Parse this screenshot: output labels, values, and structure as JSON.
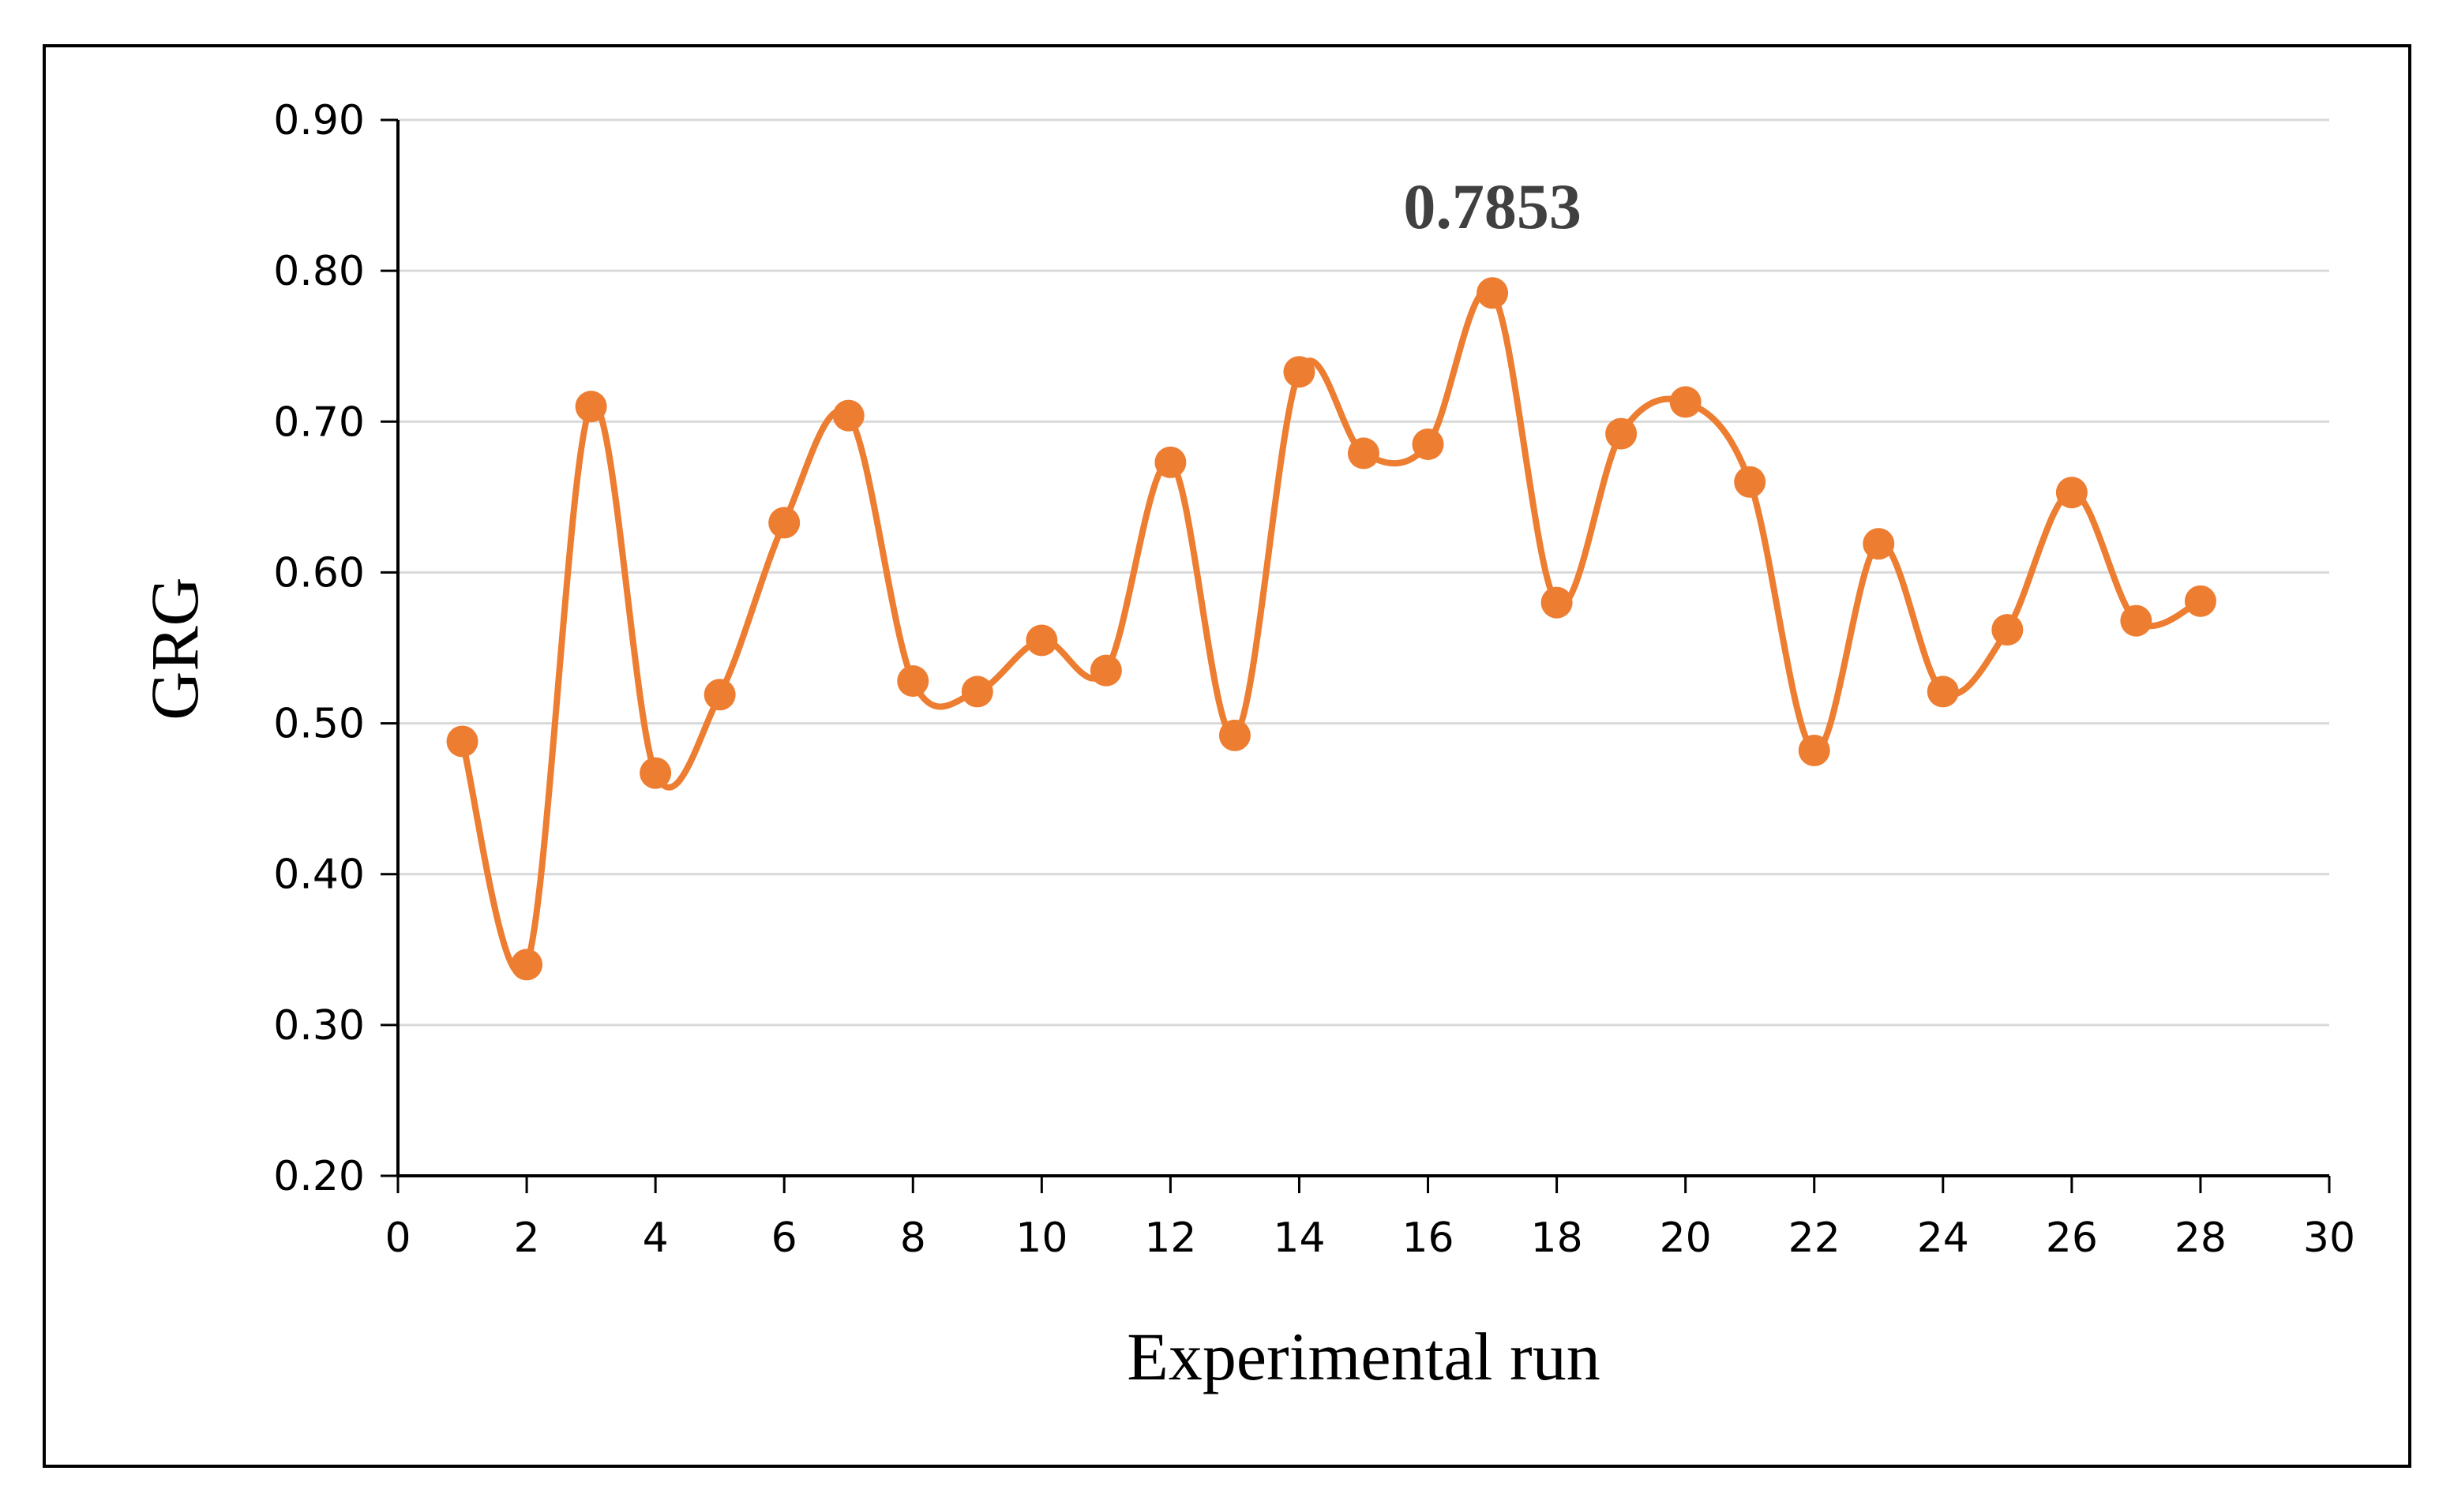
{
  "chart_data": {
    "type": "line",
    "title": "",
    "xlabel": "Experimental run",
    "ylabel": "GRG",
    "xlim": [
      0,
      30
    ],
    "ylim": [
      0.2,
      0.9
    ],
    "x_ticks": [
      "0",
      "2",
      "4",
      "6",
      "8",
      "10",
      "12",
      "14",
      "16",
      "18",
      "20",
      "22",
      "24",
      "26",
      "28",
      "30"
    ],
    "y_ticks": [
      "0.20",
      "0.30",
      "0.40",
      "0.50",
      "0.60",
      "0.70",
      "0.80",
      "0.90"
    ],
    "grid": "horizontal",
    "smooth": true,
    "series": [
      {
        "color": "#ED7D31",
        "x": [
          1,
          2,
          3,
          4,
          5,
          6,
          7,
          8,
          9,
          10,
          11,
          12,
          13,
          14,
          15,
          16,
          17,
          18,
          19,
          20,
          21,
          22,
          23,
          24,
          25,
          26,
          27,
          28
        ],
        "values": [
          0.488,
          0.34,
          0.71,
          0.467,
          0.519,
          0.633,
          0.704,
          0.528,
          0.521,
          0.555,
          0.535,
          0.673,
          0.492,
          0.733,
          0.679,
          0.685,
          0.7853,
          0.58,
          0.692,
          0.713,
          0.66,
          0.482,
          0.619,
          0.521,
          0.562,
          0.653,
          0.568,
          0.581
        ]
      }
    ],
    "annotations": [
      {
        "text": "0.7853",
        "x": 17,
        "y": 0.7853
      }
    ]
  }
}
